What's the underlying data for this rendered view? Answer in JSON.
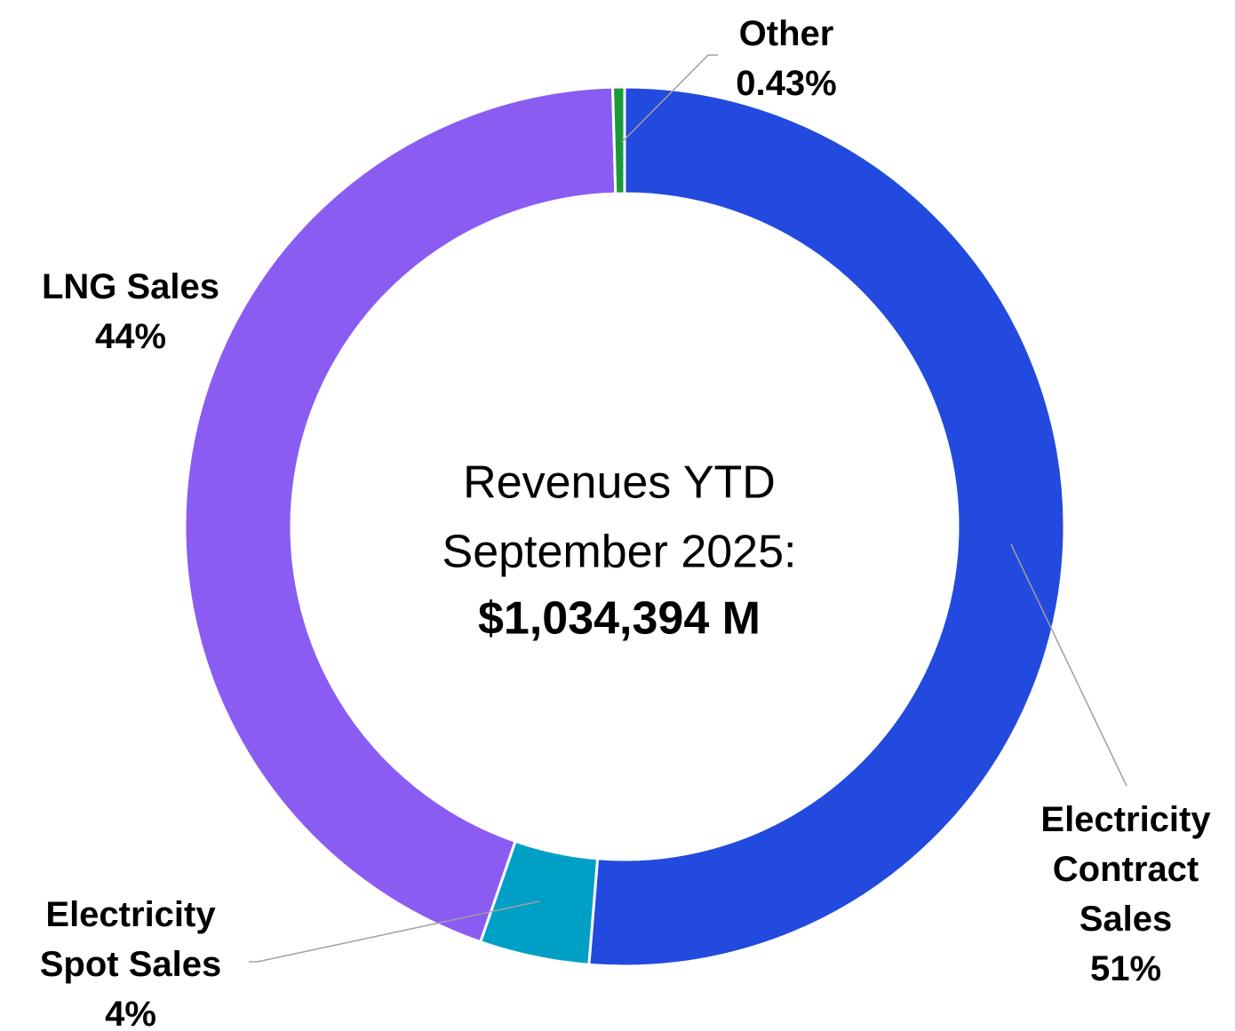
{
  "chart_data": {
    "type": "donut",
    "categories": [
      "Electricity Contract Sales",
      "Electricity Spot Sales",
      "LNG Sales",
      "Other"
    ],
    "values": [
      51,
      4,
      44,
      0.43
    ],
    "value_labels": [
      "51%",
      "4%",
      "44%",
      "0.43%"
    ],
    "colors": [
      "#224ade",
      "#00a0c6",
      "#8a5cf2",
      "#1a9a3a"
    ],
    "center_label": [
      "Revenues YTD",
      "September 2025:"
    ],
    "total_label": "$1,034,394 M"
  }
}
